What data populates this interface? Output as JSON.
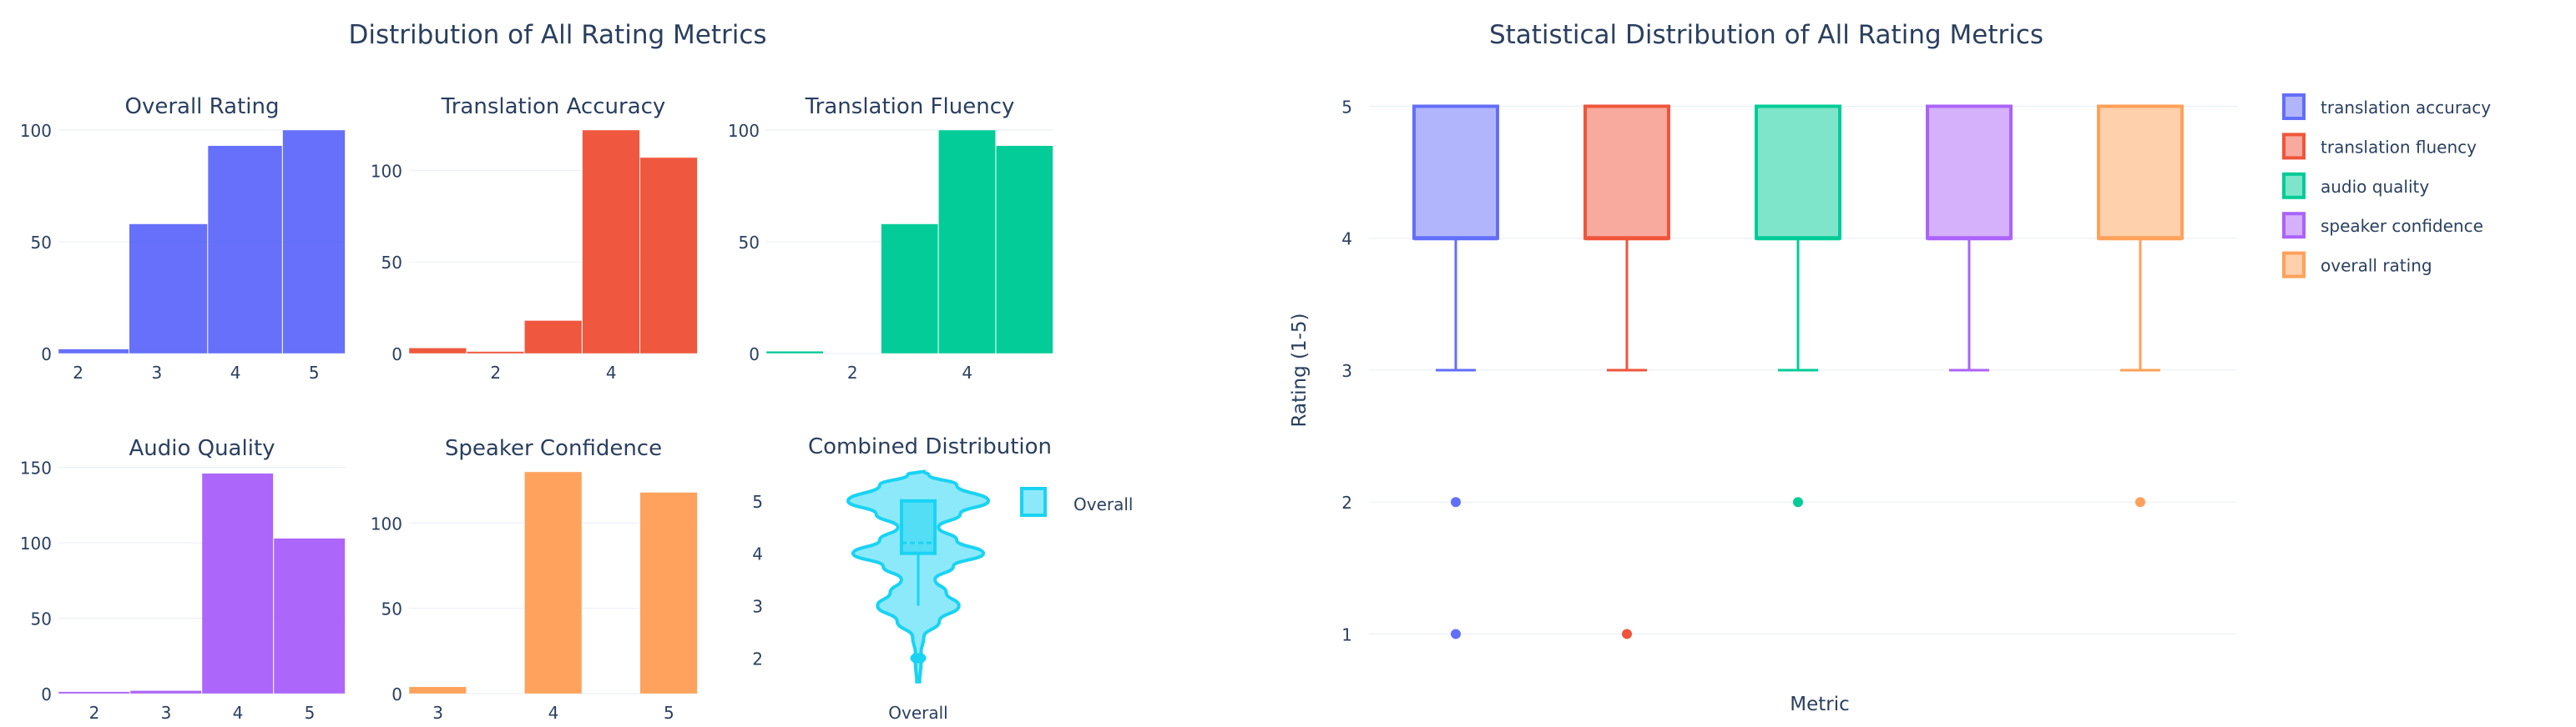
{
  "titles": {
    "left": "Distribution of All Rating Metrics",
    "right": "Statistical Distribution of All Rating Metrics"
  },
  "colors": {
    "text": "#2a3f5f",
    "grid": "#ebf0f8",
    "accuracy": "#636efa",
    "fluency": "#EF553B",
    "audio": "#00cc96",
    "speaker": "#ab63fa",
    "overall": "#FFA15A",
    "combined": "#19d3f3"
  },
  "chart_data": [
    {
      "type": "histogram",
      "title": "Overall Rating",
      "bin_edges": [
        1.75,
        2.65,
        3.65,
        4.6,
        5.4
      ],
      "counts": [
        2,
        58,
        93,
        100
      ],
      "xlim": [
        1.75,
        5.4
      ],
      "ylim": [
        0,
        100
      ],
      "xticks": [
        "2",
        "3",
        "4",
        "5"
      ],
      "xtick_values": [
        2,
        3,
        4,
        5
      ],
      "yticks": [
        "0",
        "50",
        "100"
      ],
      "ytick_values": [
        0,
        50,
        100
      ],
      "color": "#636efa"
    },
    {
      "type": "histogram",
      "title": "Translation Accuracy",
      "bin_edges": [
        0.5,
        1.5,
        2.5,
        3.5,
        4.5,
        5.5
      ],
      "counts": [
        3,
        1,
        18,
        122,
        107
      ],
      "xlim": [
        0.5,
        5.5
      ],
      "ylim": [
        0,
        122
      ],
      "xticks": [
        "2",
        "4"
      ],
      "xtick_values": [
        2,
        4
      ],
      "yticks": [
        "0",
        "50",
        "100"
      ],
      "ytick_values": [
        0,
        50,
        100
      ],
      "color": "#EF553B"
    },
    {
      "type": "histogram",
      "title": "Translation Fluency",
      "bin_edges": [
        0.5,
        1.5,
        2.5,
        3.5,
        4.5,
        5.5
      ],
      "counts": [
        1,
        0,
        58,
        100,
        93
      ],
      "xlim": [
        0.5,
        5.5
      ],
      "ylim": [
        0,
        100
      ],
      "xticks": [
        "2",
        "4"
      ],
      "xtick_values": [
        2,
        4
      ],
      "yticks": [
        "0",
        "50",
        "100"
      ],
      "ytick_values": [
        0,
        50,
        100
      ],
      "color": "#00cc96"
    },
    {
      "type": "histogram",
      "title": "Audio Quality",
      "bin_edges": [
        1.5,
        2.5,
        3.5,
        4.5,
        5.5
      ],
      "counts": [
        1,
        2,
        146,
        103
      ],
      "xlim": [
        1.5,
        5.5
      ],
      "ylim": [
        0,
        147
      ],
      "xticks": [
        "2",
        "3",
        "4",
        "5"
      ],
      "xtick_values": [
        2,
        3,
        4,
        5
      ],
      "yticks": [
        "0",
        "50",
        "100",
        "150"
      ],
      "ytick_values": [
        0,
        50,
        100,
        150
      ],
      "color": "#ab63fa"
    },
    {
      "type": "histogram",
      "title": "Speaker Confidence",
      "bin_edges": [
        2.75,
        3.25,
        3.75,
        4.25,
        4.75,
        5.25
      ],
      "counts": [
        4,
        0,
        130,
        0,
        118
      ],
      "xlim": [
        2.75,
        5.25
      ],
      "ylim": [
        0,
        130
      ],
      "xticks": [
        "3",
        "4",
        "5"
      ],
      "xtick_values": [
        3,
        4,
        5
      ],
      "yticks": [
        "0",
        "50",
        "100"
      ],
      "ytick_values": [
        0,
        50,
        100
      ],
      "color": "#FFA15A"
    },
    {
      "type": "violin",
      "title": "Combined Distribution",
      "category": "Overall",
      "legend": "Overall",
      "ylim": [
        1.45,
        5.65
      ],
      "yticks": [
        "2",
        "3",
        "4",
        "5"
      ],
      "ytick_values": [
        2,
        3,
        4,
        5
      ],
      "density_profile": [
        [
          1.55,
          0.02
        ],
        [
          1.9,
          0.04
        ],
        [
          2.0,
          0.09
        ],
        [
          2.1,
          0.04
        ],
        [
          2.4,
          0.08
        ],
        [
          2.7,
          0.3
        ],
        [
          3.0,
          0.58
        ],
        [
          3.25,
          0.4
        ],
        [
          3.5,
          0.24
        ],
        [
          3.75,
          0.5
        ],
        [
          4.0,
          0.93
        ],
        [
          4.25,
          0.55
        ],
        [
          4.5,
          0.29
        ],
        [
          4.75,
          0.6
        ],
        [
          5.0,
          1.0
        ],
        [
          5.3,
          0.55
        ],
        [
          5.5,
          0.15
        ],
        [
          5.56,
          0.08
        ]
      ],
      "box": {
        "q1": 4,
        "median": 4,
        "q3": 5,
        "mean": 4.2,
        "lower_whisker": 3,
        "upper_whisker": 5
      },
      "outliers": [
        2
      ],
      "color": "#19d3f3"
    },
    {
      "type": "box",
      "title": "Statistical Distribution of All Rating Metrics",
      "xlabel": "Metric",
      "ylabel": "Rating (1-5)",
      "ylim": [
        0.75,
        5.3
      ],
      "yticks": [
        "1",
        "2",
        "3",
        "4",
        "5"
      ],
      "ytick_values": [
        1,
        2,
        3,
        4,
        5
      ],
      "series": [
        {
          "name": "translation accuracy",
          "q1": 4,
          "median": 4,
          "q3": 5,
          "lower_whisker": 3,
          "upper_whisker": 5,
          "outliers": [
            2,
            1
          ],
          "color": "#636efa"
        },
        {
          "name": "translation fluency",
          "q1": 4,
          "median": 4,
          "q3": 5,
          "lower_whisker": 3,
          "upper_whisker": 5,
          "outliers": [
            1
          ],
          "color": "#EF553B"
        },
        {
          "name": "audio quality",
          "q1": 4,
          "median": 4,
          "q3": 5,
          "lower_whisker": 3,
          "upper_whisker": 5,
          "outliers": [
            2
          ],
          "color": "#00cc96"
        },
        {
          "name": "speaker confidence",
          "q1": 4,
          "median": 4,
          "q3": 5,
          "lower_whisker": 3,
          "upper_whisker": 5,
          "outliers": [],
          "color": "#ab63fa"
        },
        {
          "name": "overall rating",
          "q1": 4,
          "median": 4,
          "q3": 5,
          "lower_whisker": 3,
          "upper_whisker": 5,
          "outliers": [
            2
          ],
          "color": "#FFA15A"
        }
      ],
      "legend_position": "top-right"
    }
  ]
}
